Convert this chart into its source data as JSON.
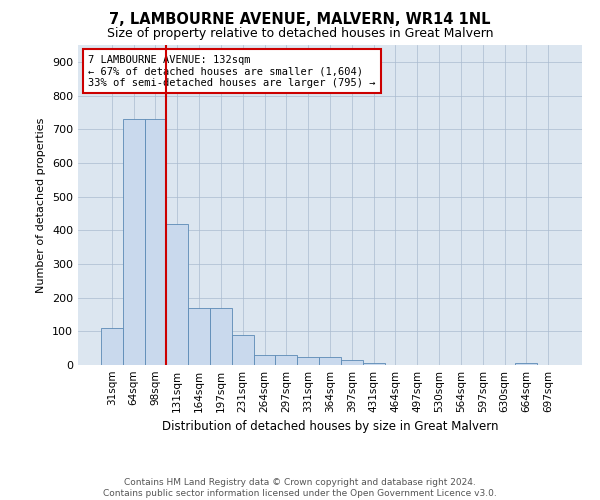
{
  "title": "7, LAMBOURNE AVENUE, MALVERN, WR14 1NL",
  "subtitle": "Size of property relative to detached houses in Great Malvern",
  "xlabel": "Distribution of detached houses by size in Great Malvern",
  "ylabel": "Number of detached properties",
  "footer_line1": "Contains HM Land Registry data © Crown copyright and database right 2024.",
  "footer_line2": "Contains public sector information licensed under the Open Government Licence v3.0.",
  "bins": [
    "31sqm",
    "64sqm",
    "98sqm",
    "131sqm",
    "164sqm",
    "197sqm",
    "231sqm",
    "264sqm",
    "297sqm",
    "331sqm",
    "364sqm",
    "397sqm",
    "431sqm",
    "464sqm",
    "497sqm",
    "530sqm",
    "564sqm",
    "597sqm",
    "630sqm",
    "664sqm",
    "697sqm"
  ],
  "values": [
    110,
    730,
    730,
    420,
    170,
    170,
    90,
    30,
    30,
    25,
    25,
    15,
    5,
    0,
    0,
    0,
    0,
    0,
    0,
    5,
    0
  ],
  "bar_color": "#c9d9ed",
  "bar_edge_color": "#5b8ab5",
  "property_bin_index": 3,
  "annotation_text_line1": "7 LAMBOURNE AVENUE: 132sqm",
  "annotation_text_line2": "← 67% of detached houses are smaller (1,604)",
  "annotation_text_line3": "33% of semi-detached houses are larger (795) →",
  "red_line_color": "#cc0000",
  "annotation_box_edge_color": "#cc0000",
  "ylim": [
    0,
    950
  ],
  "yticks": [
    0,
    100,
    200,
    300,
    400,
    500,
    600,
    700,
    800,
    900
  ],
  "grid_color": "#aabbd0",
  "bg_color": "#dce6f0",
  "title_fontsize": 10.5,
  "subtitle_fontsize": 9,
  "footer_fontsize": 6.5
}
